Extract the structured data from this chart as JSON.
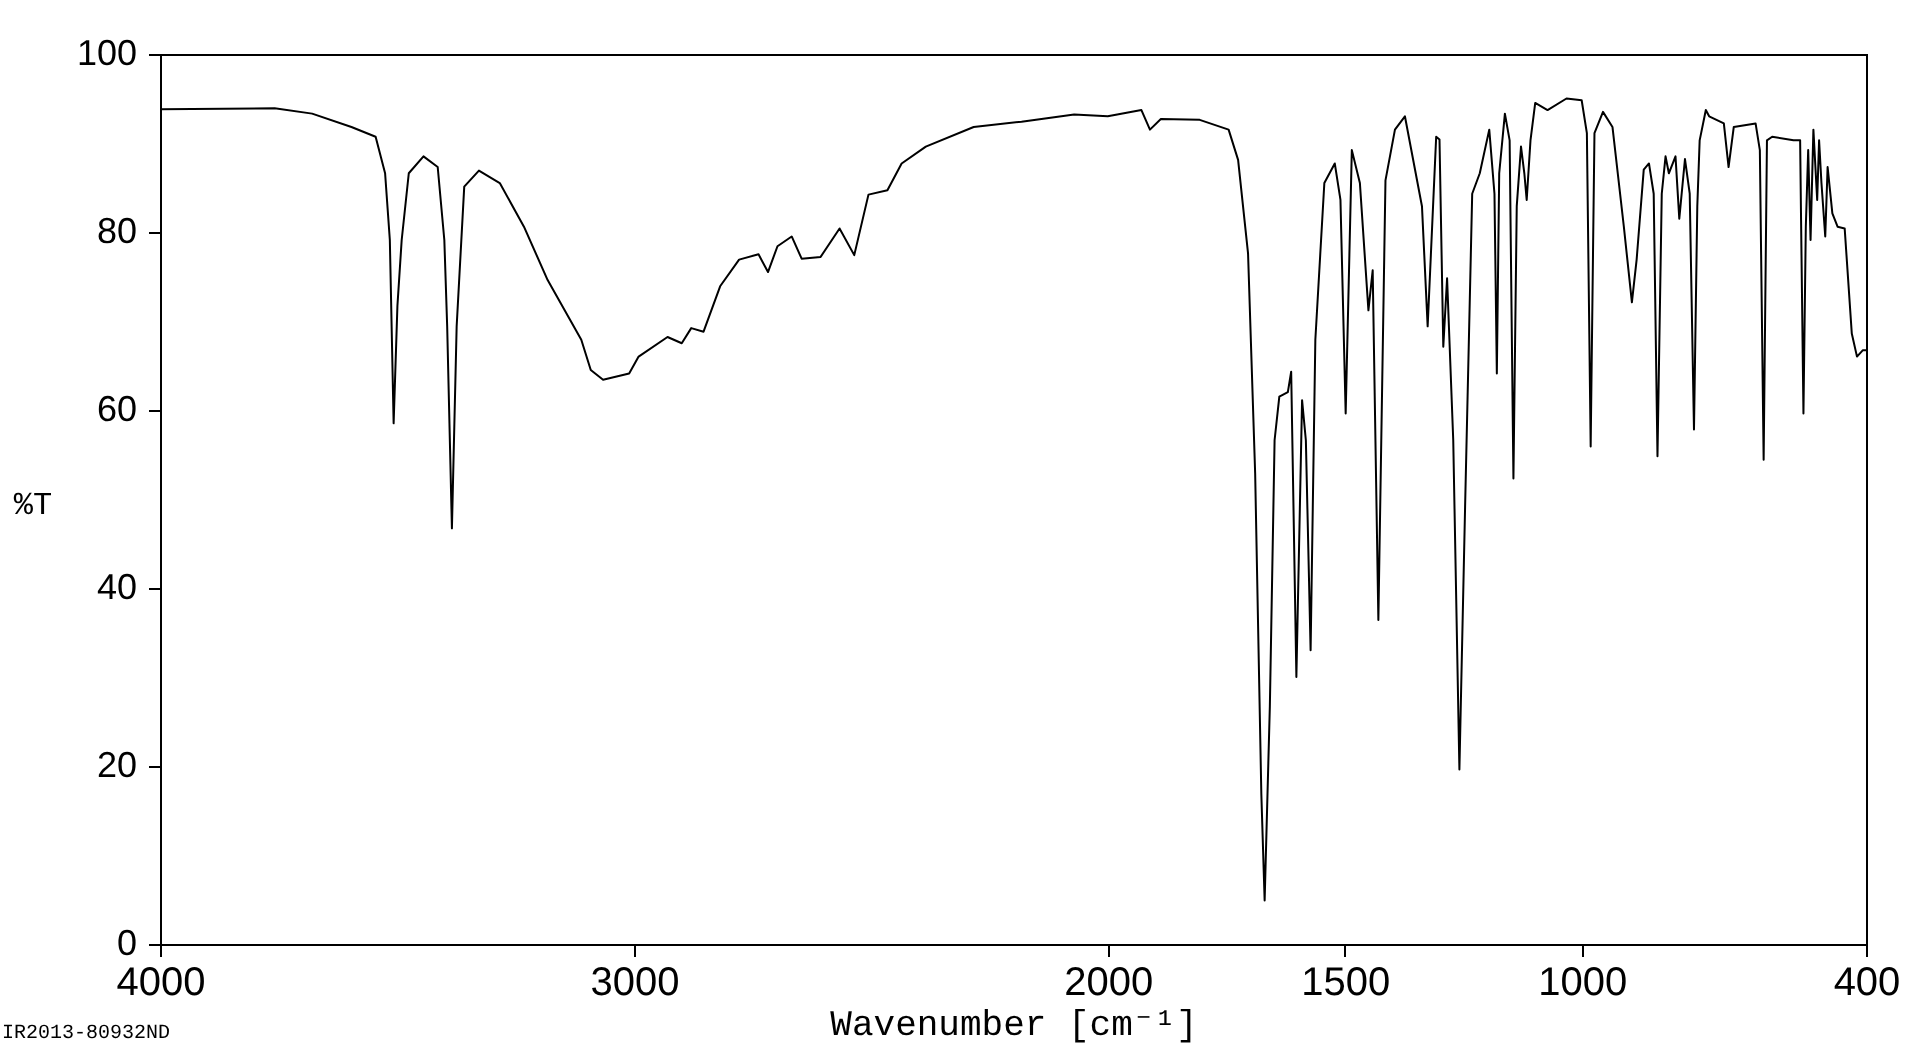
{
  "chart_data": {
    "type": "line",
    "xlabel": "Wavenumber [cm⁻¹]",
    "ylabel": "%T",
    "annotations": [
      "IR2013-80932ND"
    ],
    "x": [
      4000,
      3758,
      3679,
      3596,
      3545,
      3525,
      3515,
      3507,
      3499,
      3490,
      3475,
      3444,
      3414,
      3400,
      3394,
      3384,
      3374,
      3358,
      3327,
      3283,
      3232,
      3182,
      3111,
      3091,
      3065,
      3010,
      2990,
      2929,
      2899,
      2879,
      2853,
      2818,
      2778,
      2737,
      2717,
      2697,
      2667,
      2646,
      2606,
      2566,
      2535,
      2505,
      2465,
      2435,
      2384,
      2283,
      2182,
      2071,
      2000,
      1929,
      1911,
      1888,
      1806,
      1745,
      1725,
      1704,
      1689,
      1676,
      1669,
      1658,
      1648,
      1638,
      1620,
      1613,
      1602,
      1590,
      1582,
      1572,
      1562,
      1543,
      1521,
      1509,
      1498,
      1485,
      1468,
      1450,
      1441,
      1429,
      1414,
      1394,
      1373,
      1337,
      1325,
      1307,
      1300,
      1292,
      1284,
      1271,
      1258,
      1246,
      1231,
      1215,
      1195,
      1184,
      1179,
      1174,
      1162,
      1152,
      1144,
      1137,
      1128,
      1121,
      1116,
      1108,
      1098,
      1072,
      1032,
      1000,
      989,
      981,
      973,
      955,
      935,
      911,
      894,
      884,
      869,
      858,
      848,
      840,
      831,
      823,
      816,
      802,
      794,
      782,
      772,
      763,
      756,
      751,
      738,
      731,
      700,
      690,
      679,
      633,
      624,
      616,
      609,
      598,
      553,
      539,
      537,
      532,
      527,
      522,
      517,
      511,
      503,
      499,
      494,
      486,
      481,
      471,
      460,
      445,
      430,
      419,
      407,
      400
    ],
    "series": [
      {
        "color": "#000000",
        "values": [
          93.8,
          93.9,
          93.3,
          91.8,
          90.7,
          86.6,
          79.1,
          58.5,
          71.7,
          79.1,
          86.6,
          88.5,
          87.3,
          79.1,
          69.4,
          46.7,
          69.4,
          85.1,
          86.9,
          85.5,
          80.6,
          74.6,
          67.9,
          64.5,
          63.4,
          64.1,
          66.0,
          68.2,
          67.5,
          69.2,
          68.8,
          73.9,
          76.9,
          77.5,
          75.5,
          78.4,
          79.5,
          77.0,
          77.2,
          80.4,
          77.4,
          84.2,
          84.7,
          87.7,
          89.6,
          91.8,
          92.4,
          93.2,
          93.0,
          93.7,
          91.5,
          92.7,
          92.6,
          91.5,
          88.1,
          77.6,
          52.9,
          16.9,
          4.9,
          26.7,
          56.6,
          61.5,
          62.0,
          64.3,
          30.0,
          61.1,
          56.6,
          33.0,
          67.9,
          85.5,
          87.7,
          83.6,
          59.6,
          89.2,
          85.5,
          71.2,
          75.7,
          36.4,
          85.8,
          91.5,
          93.0,
          82.9,
          69.4,
          90.7,
          90.4,
          67.1,
          74.8,
          56.6,
          19.6,
          49.1,
          84.3,
          86.6,
          91.5,
          84.3,
          64.1,
          86.6,
          93.3,
          90.3,
          52.3,
          82.9,
          89.6,
          86.6,
          83.6,
          90.3,
          94.5,
          93.7,
          95.0,
          94.8,
          91.1,
          55.9,
          91.1,
          93.5,
          91.8,
          80.6,
          72.1,
          76.9,
          87.0,
          87.7,
          84.3,
          54.8,
          84.3,
          88.5,
          86.6,
          88.5,
          81.5,
          88.2,
          84.3,
          57.8,
          82.9,
          90.3,
          93.7,
          93.0,
          92.2,
          87.3,
          91.8,
          92.2,
          89.2,
          54.4,
          90.3,
          90.7,
          90.3,
          90.3,
          81.3,
          59.6,
          80.6,
          89.2,
          79.1,
          91.5,
          83.6,
          90.3,
          85.5,
          79.5,
          87.3,
          82.1,
          80.6,
          80.4,
          68.6,
          66.0,
          66.7,
          66.7
        ]
      }
    ],
    "xlim": [
      4000,
      400
    ],
    "xticks": [
      4000,
      3000,
      2000,
      1500,
      1000,
      400
    ],
    "ylim": [
      0,
      100
    ],
    "yticks": [
      0,
      20,
      40,
      60,
      80,
      100
    ],
    "grid": false,
    "marker": "none",
    "line_style": "solid"
  }
}
